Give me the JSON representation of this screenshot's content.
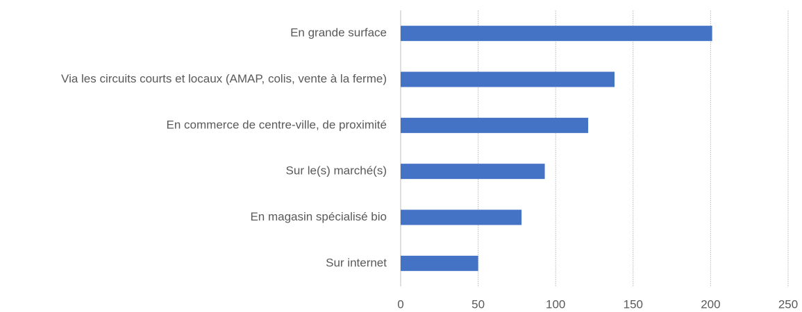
{
  "chart_data": {
    "type": "hbar",
    "categories": [
      "En grande surface",
      "Via les circuits courts et locaux (AMAP, colis, vente à la ferme)",
      "En commerce de centre-ville, de proximité",
      "Sur le(s) marché(s)",
      "En magasin spécialisé bio",
      "Sur internet"
    ],
    "values": [
      201,
      138,
      121,
      93,
      78,
      50
    ],
    "color": "#4472c4",
    "xlim": [
      0,
      250
    ],
    "xticks": [
      0,
      50,
      100,
      150,
      200,
      250
    ],
    "grid": true
  }
}
